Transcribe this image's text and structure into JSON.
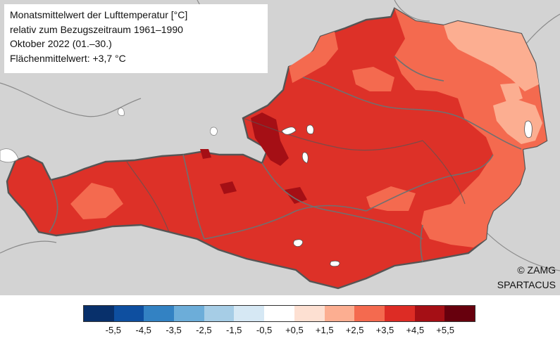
{
  "info": {
    "line1": "Monatsmittelwert der Lufttemperatur [°C]",
    "line2": "relativ zum Bezugszeitraum 1961–1990",
    "line3": "Oktober 2022 (01.–30.)",
    "line4": "Flächenmittelwert: +3,7 °C"
  },
  "credits": {
    "line1": "© ZAMG",
    "line2": "SPARTACUS"
  },
  "legend": {
    "colors": [
      "#08306b",
      "#0e4fa0",
      "#3382c3",
      "#6cadd9",
      "#a6cde6",
      "#d6e8f4",
      "#ffffff",
      "#fde0d2",
      "#fcae91",
      "#f46a4f",
      "#dd2c25",
      "#a50f15",
      "#67000d"
    ],
    "labels": [
      "-5,5",
      "-4,5",
      "-3,5",
      "-2,5",
      "-1,5",
      "-0,5",
      "+0,5",
      "+1,5",
      "+2,5",
      "+3,5",
      "+4,5",
      "+5,5"
    ]
  },
  "map_colors": {
    "background": "#d3d3d3",
    "main": "#dd3128",
    "warm": "#f46a4f",
    "light": "#fcae91",
    "dark": "#a50f15",
    "borders": "#555555",
    "lakes": "#ffffff"
  }
}
